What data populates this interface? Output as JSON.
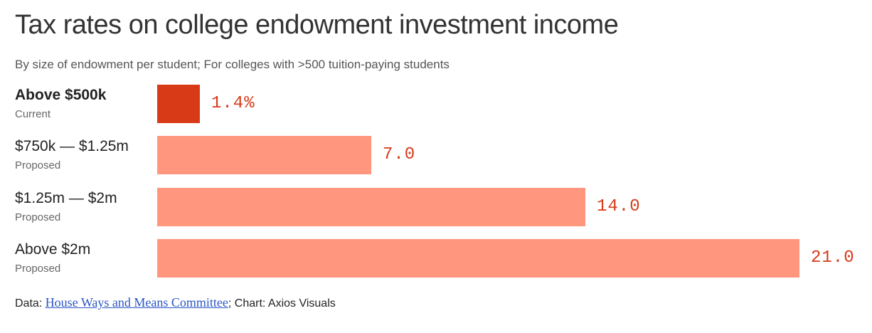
{
  "chart_data": {
    "type": "bar",
    "orientation": "horizontal",
    "title": "Tax rates on college endowment investment income",
    "subtitle": "By size of endowment per student; For colleges with >500 tuition-paying students",
    "categories": [
      "Above $500k",
      "$750k — $1.25m",
      "$1.25m — $2m",
      "Above $2m"
    ],
    "category_sublabels": [
      "Current",
      "Proposed",
      "Proposed",
      "Proposed"
    ],
    "values": [
      1.4,
      7.0,
      14.0,
      21.0
    ],
    "value_labels": [
      "1.4%",
      "7.0",
      "14.0",
      "21.0"
    ],
    "xlim": [
      0,
      21.0
    ],
    "grid": false,
    "legend": "none",
    "colors": {
      "current": "#d83a17",
      "proposed": "#ff967d",
      "value_text": "#d63a1a"
    }
  },
  "source": {
    "prefix": "Data: ",
    "link_text": "House Ways and Means Committee",
    "suffix": "; Chart: Axios Visuals"
  }
}
